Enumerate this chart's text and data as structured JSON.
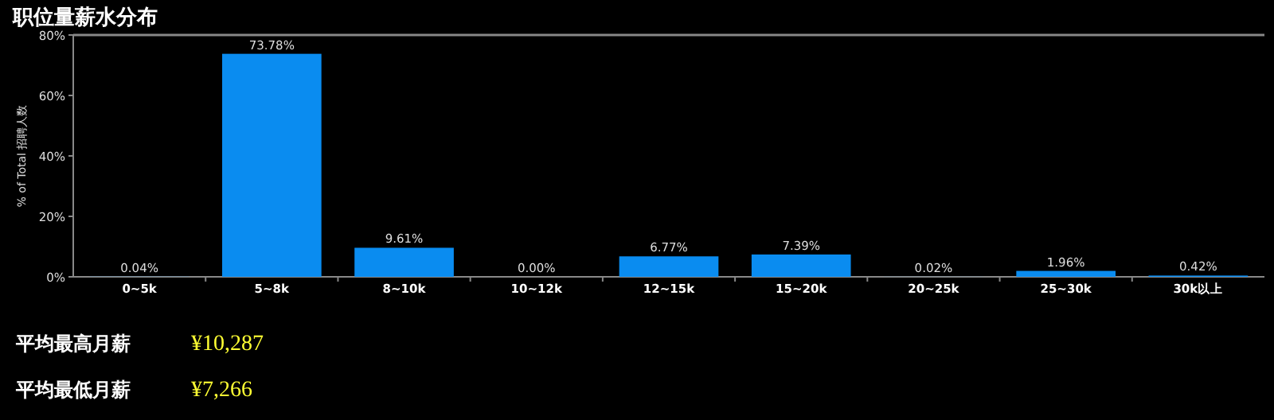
{
  "chart_data": {
    "type": "bar",
    "title": "职位量薪水分布",
    "ylabel": "% of Total 招聘人数",
    "categories": [
      "0~5k",
      "5~8k",
      "8~10k",
      "10~12k",
      "12~15k",
      "15~20k",
      "20~25k",
      "25~30k",
      "30k以上"
    ],
    "values": [
      0.04,
      73.78,
      9.61,
      0.0,
      6.77,
      7.39,
      0.02,
      1.96,
      0.42
    ],
    "value_labels": [
      "0.04%",
      "73.78%",
      "9.61%",
      "0.00%",
      "6.77%",
      "7.39%",
      "0.02%",
      "1.96%",
      "0.42%"
    ],
    "color": "#0a8cf0",
    "ylim": [
      0,
      80
    ],
    "yticks": [
      {
        "value": 0,
        "label": "0%"
      },
      {
        "value": 20,
        "label": "20%"
      },
      {
        "value": 40,
        "label": "40%"
      },
      {
        "value": 60,
        "label": "60%"
      },
      {
        "value": 80,
        "label": "80%"
      }
    ],
    "annotations": [
      "平均最高月薪",
      "¥10,287",
      "平均最低月薪",
      "¥7,266"
    ]
  }
}
